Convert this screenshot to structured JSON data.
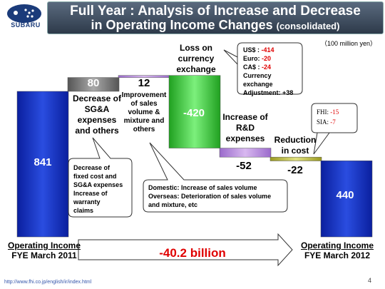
{
  "header": {
    "logo_text": "SUBARU",
    "title_line1": "Full Year : Analysis of Increase and Decrease",
    "title_line2": "in Operating Income Changes",
    "title_sub": "(consolidated)",
    "unit": "（100 million yen）"
  },
  "chart_data": {
    "type": "bar",
    "categories": [
      "Operating Income FYE March 2011",
      "Decrease of SG&A expenses and others",
      "Improvement of sales volume & mixture and others",
      "Loss on currency exchange",
      "Increase of R&D expenses",
      "Reduction in cost",
      "Operating Income FYE March 2012"
    ],
    "values": [
      841,
      80,
      12,
      -420,
      -52,
      -22,
      440
    ],
    "value_labels": [
      "841",
      "80",
      "12",
      "-420",
      "-52",
      "-22",
      "440"
    ],
    "category_labels": {
      "sga": "Decrease of SG&A expenses and others",
      "volume": "Improvement of sales volume & mixture and others",
      "currency": "Loss on currency exchange",
      "rnd": "Increase of R&D expenses",
      "cost": "Reduction in cost"
    },
    "start_label": {
      "line1": "Operating Income",
      "line2": "FYE March 2011"
    },
    "end_label": {
      "line1": "Operating  Income",
      "line2": "FYE March 2012"
    },
    "total_change": "-40.2 billion"
  },
  "callouts": {
    "currency": {
      "usd_label": "US$ : ",
      "usd_value": "-414",
      "euro_label": "Euro: ",
      "euro_value": "-20",
      "cad_label": "CA$ : ",
      "cad_value": "-24",
      "line4": "Currency",
      "line5": "exchange",
      "line6": "Adjustment: +38"
    },
    "cost": {
      "fhi_label": "FHI: ",
      "fhi_value": "-15",
      "sia_label": "SIA: ",
      "sia_value": "-7"
    },
    "sga": {
      "line1": "Decrease of",
      "line2": "fixed cost and",
      "line3": "SG&A expenses",
      "line4": "Increase of",
      "line5": "warranty",
      "line6": "claims"
    },
    "volume": {
      "line1": "Domestic: Increase of sales volume",
      "line2": "Overseas: Deterioration of sales volume",
      "line3": "and mixture, etc"
    }
  },
  "footer": {
    "url": "http://www.fhi.co.jp/english/ir/index.html",
    "page": "4"
  }
}
